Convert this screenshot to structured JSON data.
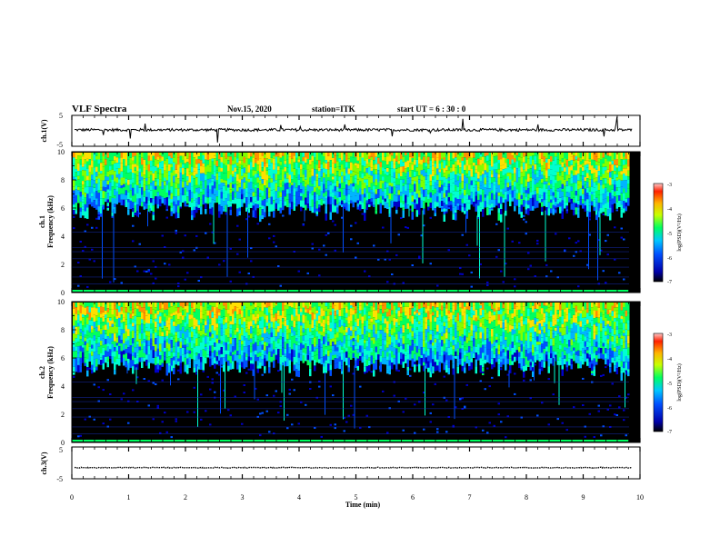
{
  "header": {
    "title": "VLF Spectra",
    "date": "Nov.15, 2020",
    "station": "station=ITK",
    "start": "start  UT =   6 : 30 : 0"
  },
  "chart_data": [
    {
      "type": "line",
      "name_label": "ch.1(V)",
      "ylim": [
        -5,
        5
      ],
      "y_tick_labels": [
        "5",
        "-5"
      ],
      "baseline": 0.3,
      "xlim": [
        0,
        10
      ]
    },
    {
      "type": "heatmap",
      "ylabel_1": "ch.1",
      "ylabel_2": "Frequency (kHz)",
      "ylim": [
        0,
        10
      ],
      "y_tick_labels": [
        "10",
        "8",
        "6",
        "4",
        "2",
        "0"
      ],
      "colorbar": {
        "label": "log(PSD)(V²/Hz)",
        "range": [
          -7,
          -3
        ],
        "tick_labels": [
          "-3",
          "-4",
          "-5",
          "-6",
          "-7"
        ]
      },
      "noise_floor_khz": 6
    },
    {
      "type": "heatmap",
      "ylabel_1": "ch.2",
      "ylabel_2": "Frequency (kHz)",
      "ylim": [
        0,
        10
      ],
      "y_tick_labels": [
        "10",
        "8",
        "6",
        "4",
        "2",
        "0"
      ],
      "colorbar": {
        "label": "log(PSD)(V²/Hz)",
        "range": [
          -7,
          -3
        ],
        "tick_labels": [
          "-3",
          "-4",
          "-5",
          "-6",
          "-7"
        ]
      },
      "noise_floor_khz": 5.5
    },
    {
      "type": "line",
      "name_label": "ch.3(V)",
      "ylim": [
        -5,
        5
      ],
      "y_tick_labels": [
        "5",
        "-5"
      ],
      "baseline": -1.5,
      "xlim": [
        0,
        10
      ]
    }
  ],
  "x_axis": {
    "label": "Time (min)",
    "xlim": [
      0,
      10
    ],
    "tick_labels": [
      "0",
      "1",
      "2",
      "3",
      "4",
      "5",
      "6",
      "7",
      "8",
      "9",
      "10"
    ]
  }
}
